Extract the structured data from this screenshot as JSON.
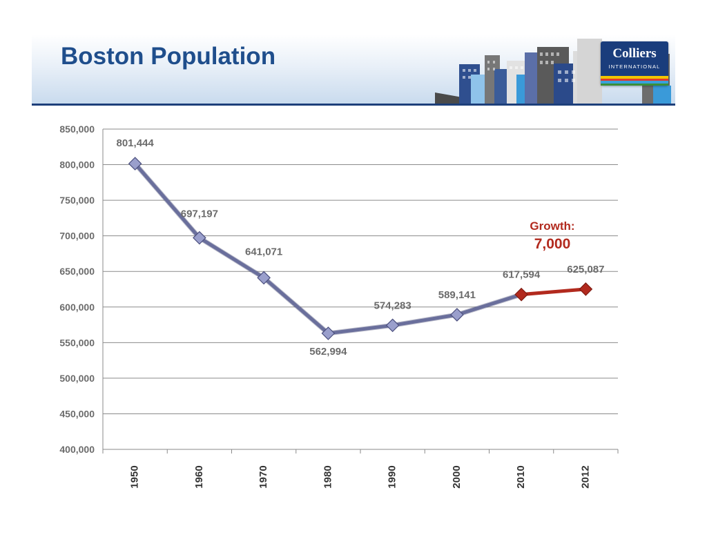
{
  "header": {
    "title": "Boston Population",
    "logo_name": "Colliers",
    "logo_sub": "INTERNATIONAL"
  },
  "colors": {
    "title": "#1f4e8c",
    "series_main": "#6a6f9c",
    "series_highlight": "#b22a1e",
    "grid": "#8a8a8a",
    "label_gray": "#6b6b6b"
  },
  "annotation": {
    "label": "Growth:",
    "value": "7,000"
  },
  "chart_data": {
    "type": "line",
    "categories": [
      "1950",
      "1960",
      "1970",
      "1980",
      "1990",
      "2000",
      "2010",
      "2012"
    ],
    "values": [
      801444,
      697197,
      641071,
      562994,
      574283,
      589141,
      617594,
      625087
    ],
    "data_labels": [
      "801,444",
      "697,197",
      "641,071",
      "562,994",
      "574,283",
      "589,141",
      "617,594",
      "625,087"
    ],
    "highlight_from_index": 6,
    "ylim": [
      400000,
      850000
    ],
    "ytick_step": 50000,
    "ytick_labels": [
      "400,000",
      "450,000",
      "500,000",
      "550,000",
      "600,000",
      "650,000",
      "700,000",
      "750,000",
      "800,000",
      "850,000"
    ],
    "title": "",
    "xlabel": "",
    "ylabel": "",
    "grid": true,
    "legend": "none"
  }
}
